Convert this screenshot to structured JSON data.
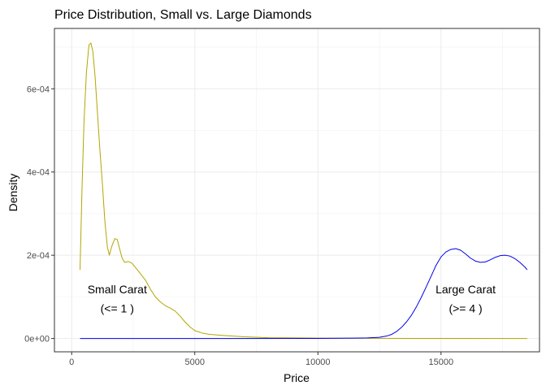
{
  "chart_data": {
    "type": "line",
    "title": "Price Distribution, Small vs. Large Diamonds",
    "xlabel": "Price",
    "ylabel": "Density",
    "xlim": [
      -700,
      19000
    ],
    "ylim": [
      -3.2e-05,
      0.000745
    ],
    "x_ticks": [
      0,
      5000,
      10000,
      15000
    ],
    "x_tick_labels": [
      "0",
      "5000",
      "10000",
      "15000"
    ],
    "y_ticks": [
      0,
      0.0002,
      0.0004,
      0.0006
    ],
    "y_tick_labels": [
      "0e+00",
      "2e-04",
      "4e-04",
      "6e-04"
    ],
    "grid": true,
    "legend": "none",
    "series": [
      {
        "color": "#b3a600",
        "points": [
          [
            340,
            0.000165
          ],
          [
            420,
            0.00036
          ],
          [
            500,
            0.00052
          ],
          [
            600,
            0.00064
          ],
          [
            700,
            0.000705
          ],
          [
            780,
            0.00071
          ],
          [
            860,
            0.00069
          ],
          [
            950,
            0.00063
          ],
          [
            1050,
            0.00054
          ],
          [
            1150,
            0.00045
          ],
          [
            1250,
            0.00037
          ],
          [
            1350,
            0.00028
          ],
          [
            1450,
            0.00022
          ],
          [
            1530,
            0.0002
          ],
          [
            1620,
            0.00022
          ],
          [
            1750,
            0.00024
          ],
          [
            1850,
            0.000238
          ],
          [
            1950,
            0.000215
          ],
          [
            2050,
            0.000193
          ],
          [
            2150,
            0.000183
          ],
          [
            2300,
            0.000185
          ],
          [
            2450,
            0.000181
          ],
          [
            2600,
            0.00017
          ],
          [
            2800,
            0.000155
          ],
          [
            3000,
            0.00014
          ],
          [
            3200,
            0.000118
          ],
          [
            3400,
            0.0001
          ],
          [
            3600,
            8.8e-05
          ],
          [
            3800,
            7.9e-05
          ],
          [
            4000,
            7.3e-05
          ],
          [
            4200,
            6.6e-05
          ],
          [
            4400,
            5.4e-05
          ],
          [
            4600,
            4e-05
          ],
          [
            4800,
            2.8e-05
          ],
          [
            5000,
            1.9e-05
          ],
          [
            5300,
            1.3e-05
          ],
          [
            5600,
            1e-05
          ],
          [
            6000,
            8e-06
          ],
          [
            6500,
            6e-06
          ],
          [
            7000,
            4e-06
          ],
          [
            8000,
            2e-06
          ],
          [
            10000,
            1e-06
          ],
          [
            12000,
            5e-07
          ],
          [
            14000,
            2e-07
          ],
          [
            16000,
            1e-07
          ],
          [
            18500,
            0
          ]
        ]
      },
      {
        "color": "#0000ee",
        "points": [
          [
            340,
            0
          ],
          [
            6000,
            0
          ],
          [
            10000,
            3e-07
          ],
          [
            11500,
            1e-06
          ],
          [
            12000,
            1.5e-06
          ],
          [
            12500,
            3e-06
          ],
          [
            12800,
            6e-06
          ],
          [
            13000,
            1e-05
          ],
          [
            13200,
            1.7e-05
          ],
          [
            13400,
            2.7e-05
          ],
          [
            13600,
            4e-05
          ],
          [
            13800,
            5.6e-05
          ],
          [
            14000,
            7.6e-05
          ],
          [
            14200,
            9.9e-05
          ],
          [
            14400,
            0.000124
          ],
          [
            14600,
            0.00015
          ],
          [
            14800,
            0.000176
          ],
          [
            15000,
            0.000196
          ],
          [
            15200,
            0.000208
          ],
          [
            15400,
            0.000214
          ],
          [
            15600,
            0.000216
          ],
          [
            15800,
            0.000212
          ],
          [
            16000,
            0.000203
          ],
          [
            16200,
            0.000193
          ],
          [
            16400,
            0.000186
          ],
          [
            16600,
            0.000183
          ],
          [
            16800,
            0.000184
          ],
          [
            17000,
            0.000189
          ],
          [
            17200,
            0.000195
          ],
          [
            17400,
            0.000199
          ],
          [
            17600,
            0.0002
          ],
          [
            17800,
            0.000198
          ],
          [
            18000,
            0.000192
          ],
          [
            18200,
            0.000183
          ],
          [
            18400,
            0.000172
          ],
          [
            18500,
            0.000165
          ]
        ]
      }
    ],
    "annotations": [
      {
        "lines": [
          "Small Carat",
          "(<= 1 )"
        ],
        "x": 1850,
        "y": [
          0.000118,
          7.2e-05
        ]
      },
      {
        "lines": [
          "Large Carat",
          "(>= 4 )"
        ],
        "x": 16000,
        "y": [
          0.000118,
          7.2e-05
        ]
      }
    ]
  }
}
